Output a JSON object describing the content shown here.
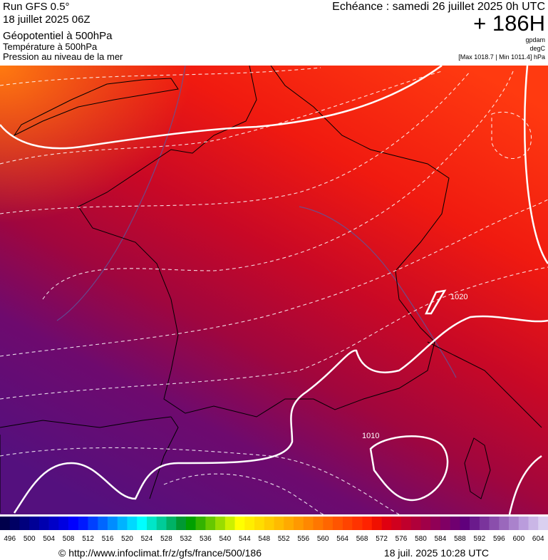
{
  "header": {
    "left": [
      "Run GFS 0.5°",
      "18 juillet 2025 06Z",
      "Géopotentiel à 500hPa",
      "Température à 500hPa",
      "Pression au niveau de la mer"
    ],
    "validity": "Echéance : samedi 26 juillet 2025 0h UTC",
    "lead": "+ 186H",
    "units": [
      "gpdam",
      "degC",
      "[Max 1018.7 | Min 1011.4] hPa"
    ]
  },
  "map": {
    "isobar_labels": [
      "1020",
      "1010"
    ]
  },
  "legend": {
    "ticks": [
      496,
      500,
      504,
      508,
      512,
      516,
      520,
      524,
      528,
      532,
      536,
      540,
      544,
      548,
      552,
      556,
      560,
      564,
      568,
      572,
      576,
      580,
      584,
      588,
      592,
      596,
      600,
      604
    ],
    "colors": [
      "#00004b",
      "#000064",
      "#00007d",
      "#000096",
      "#0000af",
      "#0000c8",
      "#0000e1",
      "#0000ff",
      "#0019ff",
      "#0040ff",
      "#0066ff",
      "#008cff",
      "#00b3ff",
      "#00d9ff",
      "#00ffff",
      "#00e6c8",
      "#00cc99",
      "#00b266",
      "#009933",
      "#00a000",
      "#33b300",
      "#66c800",
      "#99dc00",
      "#ccf000",
      "#ffff00",
      "#ffee00",
      "#ffdd00",
      "#ffcc00",
      "#ffbb00",
      "#ffaa00",
      "#ff9900",
      "#ff8800",
      "#ff7700",
      "#ff6600",
      "#ff5500",
      "#ff4400",
      "#ff3300",
      "#ff2200",
      "#f01000",
      "#e00010",
      "#d0001e",
      "#c0002c",
      "#b0003a",
      "#a00048",
      "#900056",
      "#800064",
      "#700070",
      "#60007c",
      "#6a1a8c",
      "#7a349c",
      "#8a4eac",
      "#9a68bc",
      "#aa82cc",
      "#ba9cdc",
      "#cab6e6",
      "#dad0f0"
    ]
  },
  "footer": {
    "source": "© http://www.infoclimat.fr/z/gfs/france/500/186",
    "timestamp": "18 juil. 2025 10:28 UTC"
  }
}
